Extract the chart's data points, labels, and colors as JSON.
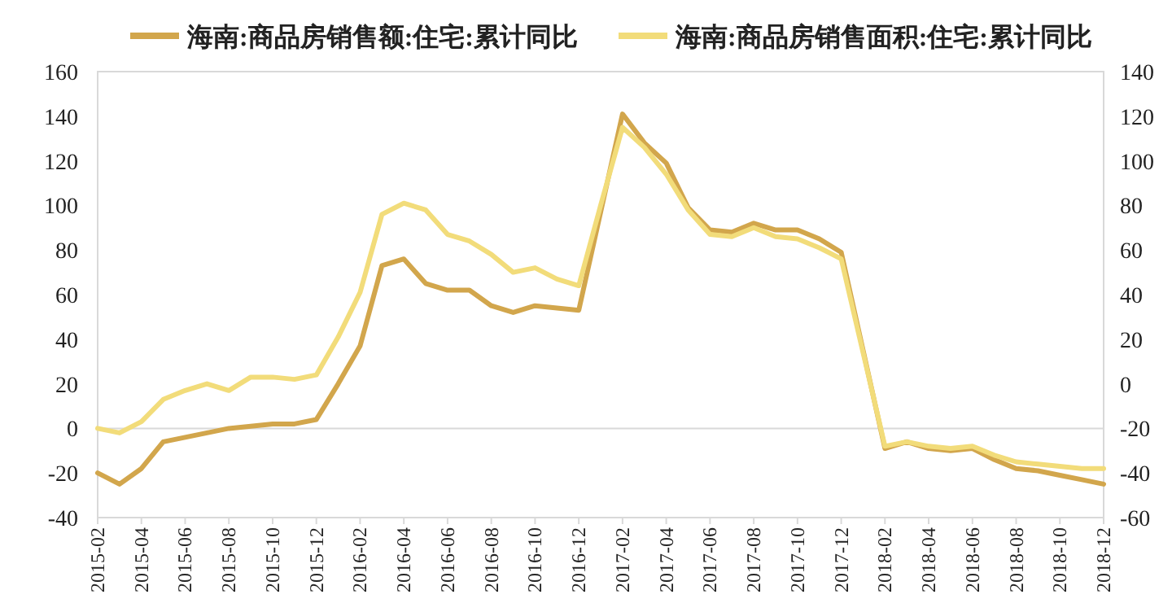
{
  "chart_data": {
    "type": "line",
    "categories": [
      "2015-02",
      null,
      "2015-04",
      null,
      "2015-06",
      null,
      "2015-08",
      null,
      "2015-10",
      null,
      "2015-12",
      null,
      "2016-02",
      null,
      "2016-04",
      null,
      "2016-06",
      null,
      "2016-08",
      null,
      "2016-10",
      null,
      "2016-12",
      null,
      "2017-02",
      null,
      "2017-04",
      null,
      "2017-06",
      null,
      "2017-08",
      null,
      "2017-10",
      null,
      "2017-12",
      null,
      "2018-02",
      null,
      "2018-04",
      null,
      "2018-06",
      null,
      "2018-08",
      null,
      "2018-10",
      null,
      "2018-12"
    ],
    "series": [
      {
        "name": "海南:商品房销售额:住宅:累计同比",
        "color": "#d2a64c",
        "values": [
          -20,
          -25,
          -18,
          -6,
          -4,
          -2,
          0,
          1,
          2,
          2,
          4,
          20,
          37,
          73,
          76,
          65,
          62,
          62,
          55,
          52,
          55,
          54,
          53,
          97,
          141,
          128,
          119,
          99,
          89,
          88,
          92,
          89,
          89,
          85,
          79,
          35,
          -9,
          -6,
          -9,
          -10,
          -9,
          -14,
          -18,
          -19,
          -21,
          -23,
          -25
        ]
      },
      {
        "name": "海南:商品房销售面积:住宅:累计同比",
        "color": "#f2dc7a",
        "axis": "y2",
        "values": [
          -20,
          -22,
          -17,
          -7,
          -3,
          0,
          -3,
          3,
          3,
          2,
          4,
          21,
          41,
          76,
          81,
          78,
          67,
          64,
          58,
          50,
          52,
          47,
          44,
          80,
          115,
          106,
          94,
          78,
          67,
          66,
          70,
          66,
          65,
          61,
          56,
          14,
          -28,
          -26,
          -28,
          -29,
          -28,
          -32,
          -35,
          -36,
          -37,
          -38,
          -38
        ]
      }
    ],
    "ylim": [
      -40,
      160
    ],
    "yticks": [
      -40,
      -20,
      0,
      20,
      40,
      60,
      80,
      100,
      120,
      140,
      160
    ],
    "y2lim": [
      -60,
      140
    ],
    "y2ticks": [
      -60,
      -40,
      -20,
      0,
      20,
      40,
      60,
      80,
      100,
      120,
      140
    ],
    "ref_lines": [
      {
        "axis": "y",
        "value": 0,
        "color": "#d9d9d9"
      }
    ],
    "legend": "top",
    "grid": false,
    "marker": "none",
    "line_style": "solid"
  }
}
